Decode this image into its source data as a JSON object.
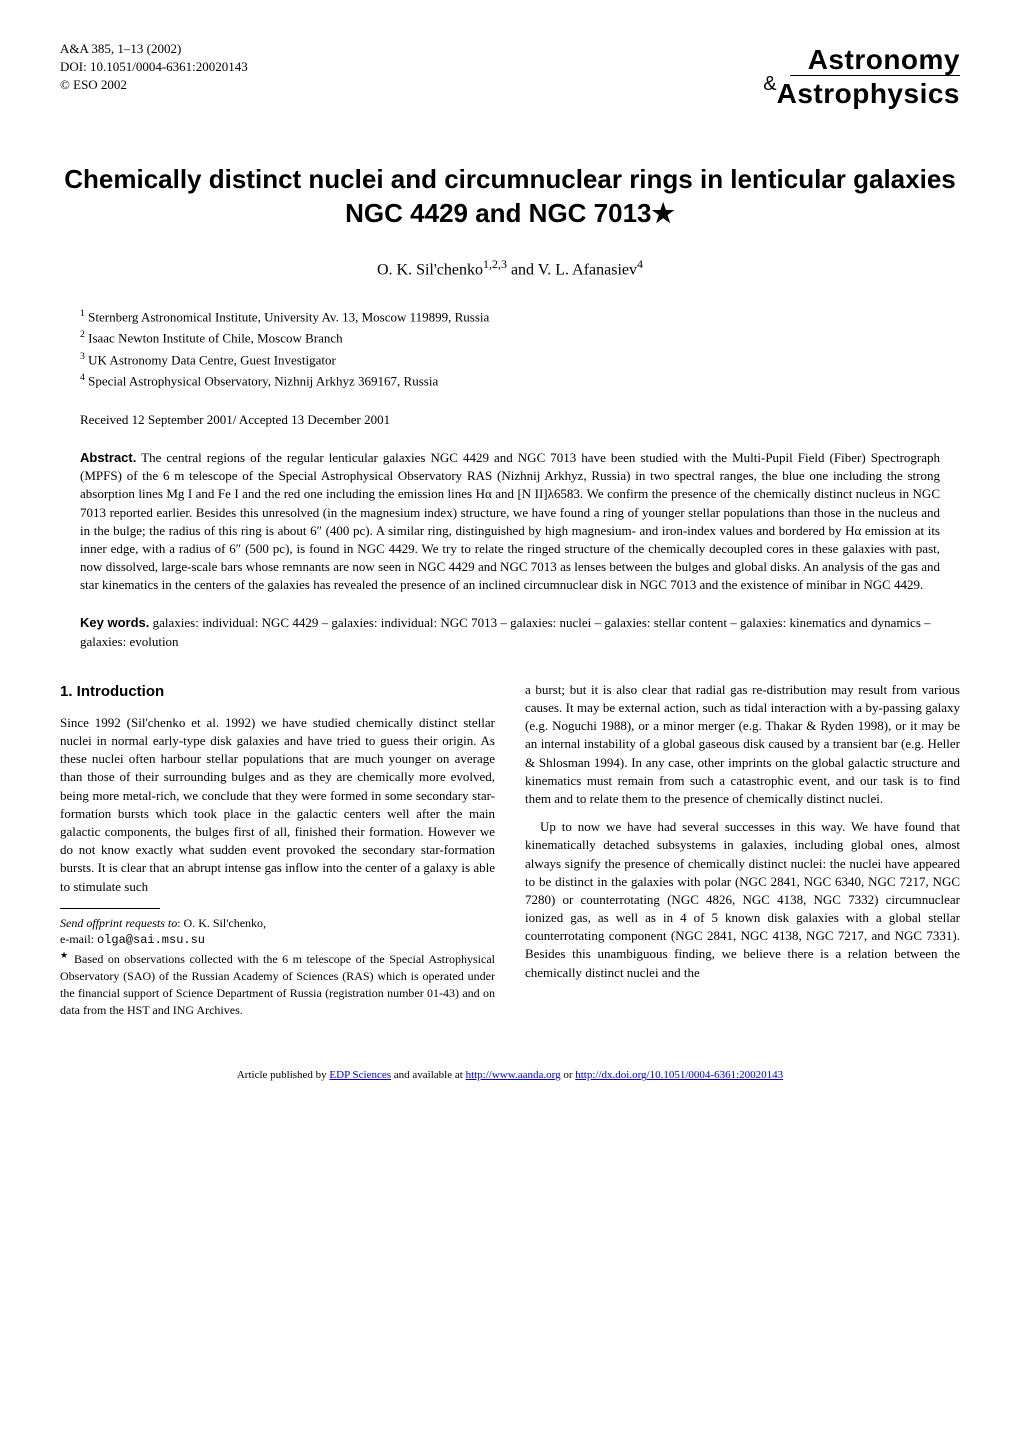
{
  "header": {
    "journal_ref": "A&A 385, 1–13 (2002)",
    "doi": "DOI: 10.1051/0004-6361:20020143",
    "copyright": "© ESO 2002",
    "logo_top": "Astronomy",
    "logo_amp": "&",
    "logo_bottom": "Astrophysics"
  },
  "title": "Chemically distinct nuclei and circumnuclear rings in lenticular galaxies NGC 4429 and NGC 7013",
  "title_star": "★",
  "authors": "O. K. Sil'chenko",
  "author1_sup": "1,2,3",
  "authors_and": " and V. L. Afanasiev",
  "author2_sup": "4",
  "affiliations": [
    {
      "num": "1",
      "text": "Sternberg Astronomical Institute, University Av. 13, Moscow 119899, Russia"
    },
    {
      "num": "2",
      "text": "Isaac Newton Institute of Chile, Moscow Branch"
    },
    {
      "num": "3",
      "text": "UK Astronomy Data Centre, Guest Investigator"
    },
    {
      "num": "4",
      "text": "Special Astrophysical Observatory, Nizhnij Arkhyz 369167, Russia"
    }
  ],
  "received": "Received 12 September 2001/ Accepted 13 December 2001",
  "abstract_label": "Abstract.",
  "abstract": "The central regions of the regular lenticular galaxies NGC 4429 and NGC 7013 have been studied with the Multi-Pupil Field (Fiber) Spectrograph (MPFS) of the 6 m telescope of the Special Astrophysical Observatory RAS (Nizhnij Arkhyz, Russia) in two spectral ranges, the blue one including the strong absorption lines Mg I and Fe I and the red one including the emission lines Hα and [N II]λ6583. We confirm the presence of the chemically distinct nucleus in NGC 7013 reported earlier. Besides this unresolved (in the magnesium index) structure, we have found a ring of younger stellar populations than those in the nucleus and in the bulge; the radius of this ring is about 6″ (400 pc). A similar ring, distinguished by high magnesium- and iron-index values and bordered by Hα emission at its inner edge, with a radius of 6″ (500 pc), is found in NGC 4429. We try to relate the ringed structure of the chemically decoupled cores in these galaxies with past, now dissolved, large-scale bars whose remnants are now seen in NGC 4429 and NGC 7013 as lenses between the bulges and global disks. An analysis of the gas and star kinematics in the centers of the galaxies has revealed the presence of an inclined circumnuclear disk in NGC 7013 and the existence of minibar in NGC 4429.",
  "keywords_label": "Key words.",
  "keywords": "galaxies: individual: NGC 4429 – galaxies: individual: NGC 7013 – galaxies: nuclei – galaxies: stellar content – galaxies: kinematics and dynamics – galaxies: evolution",
  "section1_heading": "1. Introduction",
  "col1_p1": "Since 1992 (Sil'chenko et al. 1992) we have studied chemically distinct stellar nuclei in normal early-type disk galaxies and have tried to guess their origin. As these nuclei often harbour stellar populations that are much younger on average than those of their surrounding bulges and as they are chemically more evolved, being more metal-rich, we conclude that they were formed in some secondary star-formation bursts which took place in the galactic centers well after the main galactic components, the bulges first of all, finished their formation. However we do not know exactly what sudden event provoked the secondary star-formation bursts. It is clear that an abrupt intense gas inflow into the center of a galaxy is able to stimulate such",
  "offprint_label": "Send offprint requests to",
  "offprint_to": ": O. K. Sil'chenko,",
  "email_label": "e-mail: ",
  "email": "olga@sai.msu.su",
  "footnote_star": "★",
  "footnote_text": " Based on observations collected with the 6 m telescope of the Special Astrophysical Observatory (SAO) of the Russian Academy of Sciences (RAS) which is operated under the financial support of Science Department of Russia (registration number 01-43) and on data from the HST and ING Archives.",
  "col2_p1": "a burst; but it is also clear that radial gas re-distribution may result from various causes. It may be external action, such as tidal interaction with a by-passing galaxy (e.g. Noguchi 1988), or a minor merger (e.g. Thakar & Ryden 1998), or it may be an internal instability of a global gaseous disk caused by a transient bar (e.g. Heller & Shlosman 1994). In any case, other imprints on the global galactic structure and kinematics must remain from such a catastrophic event, and our task is to find them and to relate them to the presence of chemically distinct nuclei.",
  "col2_p2": "Up to now we have had several successes in this way. We have found that kinematically detached subsystems in galaxies, including global ones, almost always signify the presence of chemically distinct nuclei: the nuclei have appeared to be distinct in the galaxies with polar (NGC 2841, NGC 6340, NGC 7217, NGC 7280) or counterrotating (NGC 4826, NGC 4138, NGC 7332) circumnuclear ionized gas, as well as in 4 of 5 known disk galaxies with a global stellar counterrotating component (NGC 2841, NGC 4138, NGC 7217, and NGC 7331). Besides this unambiguous finding, we believe there is a relation between the chemically distinct nuclei and the",
  "footer": {
    "prefix": "Article published by ",
    "edp": "EDP Sciences",
    "mid": " and available at ",
    "url1": "http://www.aanda.org",
    "or": " or ",
    "url2": "http://dx.doi.org/10.1051/0004-6361:20020143"
  }
}
